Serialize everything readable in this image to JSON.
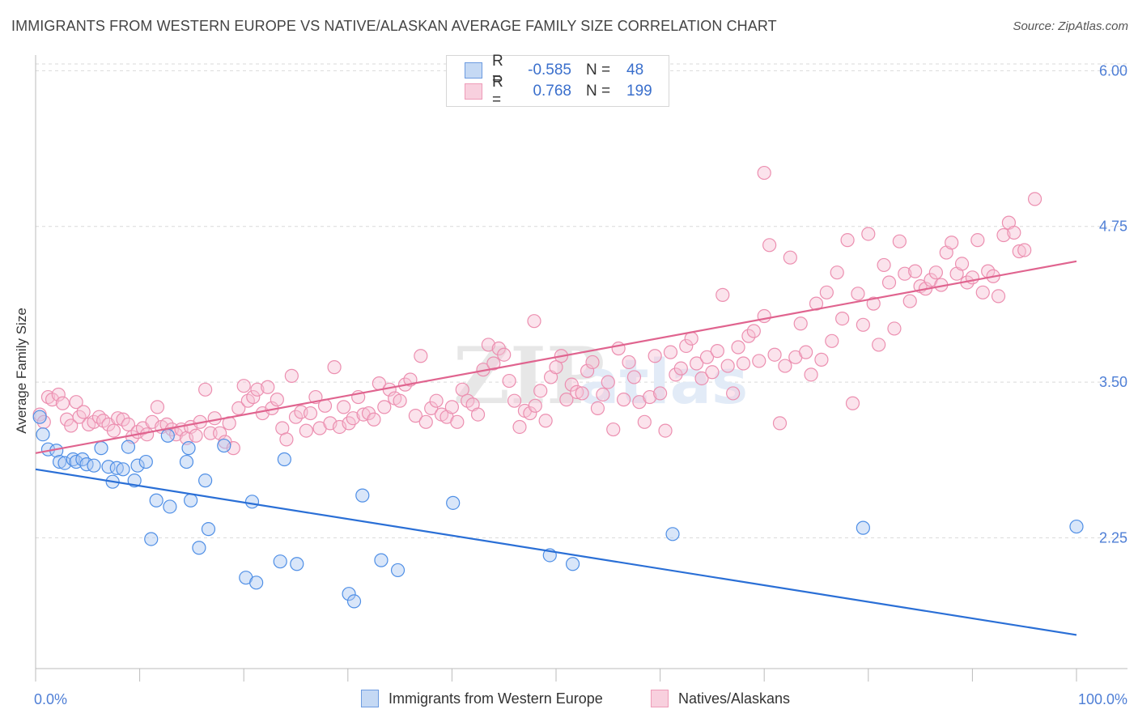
{
  "title": "IMMIGRANTS FROM WESTERN EUROPE VS NATIVE/ALASKAN AVERAGE FAMILY SIZE CORRELATION CHART",
  "source": "Source: ZipAtlas.com",
  "watermark": {
    "zip": "ZIP",
    "atlas": "atlas"
  },
  "colors": {
    "blue": "#4f8fe6",
    "blue_fill": "#aac8f2",
    "blue_line": "#2a6fd6",
    "pink": "#ec8fb0",
    "pink_fill": "#f6c2d4",
    "pink_line": "#e0648f",
    "tick_text": "#4f7fd6",
    "grid": "#d9d9d9"
  },
  "legend": {
    "rows": [
      {
        "r_label": "R =",
        "r_value": "-0.585",
        "n_label": "N =",
        "n_value": "48"
      },
      {
        "r_label": "R =",
        "r_value": "0.768",
        "n_label": "N =",
        "n_value": "199"
      }
    ]
  },
  "bottom_legend": [
    "Immigrants from Western Europe",
    "Natives/Alaskans"
  ],
  "chart_data": {
    "type": "scatter",
    "xlabel": "",
    "ylabel": "Average Family Size",
    "xlim": [
      0,
      100
    ],
    "ylim": [
      1.2,
      6.1
    ],
    "x_tick_labels": [
      "0.0%",
      "100.0%"
    ],
    "y_ticks": [
      2.25,
      3.5,
      4.75,
      6.0
    ],
    "y_tick_labels": [
      "2.25",
      "3.50",
      "4.75",
      "6.00"
    ],
    "grid": true,
    "series": [
      {
        "name": "Immigrants from Western Europe",
        "color": "blue",
        "trend": [
          [
            0,
            2.8
          ],
          [
            100,
            1.47
          ]
        ],
        "points": [
          [
            0.4,
            3.22
          ],
          [
            0.7,
            3.08
          ],
          [
            1.2,
            2.96
          ],
          [
            2.0,
            2.95
          ],
          [
            2.3,
            2.86
          ],
          [
            2.8,
            2.85
          ],
          [
            3.6,
            2.88
          ],
          [
            3.9,
            2.86
          ],
          [
            4.5,
            2.88
          ],
          [
            4.9,
            2.84
          ],
          [
            5.6,
            2.83
          ],
          [
            6.3,
            2.97
          ],
          [
            7.0,
            2.82
          ],
          [
            7.4,
            2.7
          ],
          [
            7.8,
            2.81
          ],
          [
            8.4,
            2.8
          ],
          [
            8.9,
            2.98
          ],
          [
            9.5,
            2.71
          ],
          [
            9.8,
            2.83
          ],
          [
            10.6,
            2.86
          ],
          [
            11.1,
            2.24
          ],
          [
            11.6,
            2.55
          ],
          [
            12.7,
            3.07
          ],
          [
            12.9,
            2.5
          ],
          [
            14.5,
            2.86
          ],
          [
            14.7,
            2.97
          ],
          [
            14.9,
            2.55
          ],
          [
            15.7,
            2.17
          ],
          [
            16.3,
            2.71
          ],
          [
            16.6,
            2.32
          ],
          [
            18.1,
            2.99
          ],
          [
            20.2,
            1.93
          ],
          [
            20.8,
            2.54
          ],
          [
            21.2,
            1.89
          ],
          [
            23.5,
            2.06
          ],
          [
            23.9,
            2.88
          ],
          [
            25.1,
            2.04
          ],
          [
            30.1,
            1.8
          ],
          [
            30.6,
            1.74
          ],
          [
            31.4,
            2.59
          ],
          [
            33.2,
            2.07
          ],
          [
            34.8,
            1.99
          ],
          [
            40.1,
            2.53
          ],
          [
            49.4,
            2.11
          ],
          [
            61.2,
            2.28
          ],
          [
            79.5,
            2.33
          ],
          [
            100,
            2.34
          ],
          [
            51.6,
            2.04
          ]
        ]
      },
      {
        "name": "Natives/Alaskans",
        "color": "pink",
        "trend": [
          [
            0,
            2.93
          ],
          [
            100,
            4.47
          ]
        ],
        "points": [
          [
            0.4,
            3.24
          ],
          [
            0.8,
            3.18
          ],
          [
            1.2,
            3.38
          ],
          [
            1.6,
            3.36
          ],
          [
            2.2,
            3.4
          ],
          [
            2.6,
            3.33
          ],
          [
            3.0,
            3.2
          ],
          [
            3.4,
            3.15
          ],
          [
            3.9,
            3.34
          ],
          [
            4.2,
            3.22
          ],
          [
            4.6,
            3.26
          ],
          [
            5.1,
            3.16
          ],
          [
            5.6,
            3.18
          ],
          [
            6.1,
            3.22
          ],
          [
            6.5,
            3.19
          ],
          [
            7.0,
            3.16
          ],
          [
            7.5,
            3.11
          ],
          [
            7.9,
            3.21
          ],
          [
            8.4,
            3.2
          ],
          [
            8.9,
            3.16
          ],
          [
            9.3,
            3.06
          ],
          [
            9.8,
            3.1
          ],
          [
            10.3,
            3.13
          ],
          [
            10.7,
            3.08
          ],
          [
            11.2,
            3.18
          ],
          [
            11.7,
            3.3
          ],
          [
            12.1,
            3.14
          ],
          [
            12.6,
            3.16
          ],
          [
            13.1,
            3.12
          ],
          [
            13.5,
            3.08
          ],
          [
            14.0,
            3.12
          ],
          [
            14.5,
            3.05
          ],
          [
            14.9,
            3.14
          ],
          [
            15.4,
            3.07
          ],
          [
            15.8,
            3.18
          ],
          [
            16.3,
            3.44
          ],
          [
            16.8,
            3.09
          ],
          [
            17.2,
            3.21
          ],
          [
            17.7,
            3.09
          ],
          [
            18.2,
            3.02
          ],
          [
            18.6,
            3.17
          ],
          [
            19.0,
            2.97
          ],
          [
            19.5,
            3.29
          ],
          [
            20.0,
            3.47
          ],
          [
            20.4,
            3.35
          ],
          [
            20.9,
            3.38
          ],
          [
            21.3,
            3.44
          ],
          [
            21.8,
            3.25
          ],
          [
            22.3,
            3.46
          ],
          [
            22.7,
            3.29
          ],
          [
            23.2,
            3.36
          ],
          [
            23.7,
            3.13
          ],
          [
            24.1,
            3.04
          ],
          [
            24.6,
            3.55
          ],
          [
            25.0,
            3.22
          ],
          [
            25.5,
            3.26
          ],
          [
            26.0,
            3.11
          ],
          [
            26.4,
            3.25
          ],
          [
            26.9,
            3.38
          ],
          [
            27.3,
            3.13
          ],
          [
            27.8,
            3.31
          ],
          [
            28.3,
            3.17
          ],
          [
            28.7,
            3.62
          ],
          [
            29.2,
            3.14
          ],
          [
            29.6,
            3.3
          ],
          [
            30.1,
            3.17
          ],
          [
            30.5,
            3.21
          ],
          [
            31.0,
            3.38
          ],
          [
            31.5,
            3.24
          ],
          [
            32.0,
            3.25
          ],
          [
            32.5,
            3.2
          ],
          [
            33.0,
            3.49
          ],
          [
            33.5,
            3.3
          ],
          [
            34.0,
            3.44
          ],
          [
            34.5,
            3.37
          ],
          [
            35.0,
            3.35
          ],
          [
            35.5,
            3.48
          ],
          [
            36.0,
            3.52
          ],
          [
            36.5,
            3.23
          ],
          [
            37.0,
            3.71
          ],
          [
            37.5,
            3.18
          ],
          [
            38.0,
            3.29
          ],
          [
            38.5,
            3.35
          ],
          [
            39.0,
            3.24
          ],
          [
            39.5,
            3.22
          ],
          [
            40.0,
            3.3
          ],
          [
            40.5,
            3.18
          ],
          [
            41.0,
            3.44
          ],
          [
            41.5,
            3.35
          ],
          [
            42.0,
            3.32
          ],
          [
            42.5,
            3.24
          ],
          [
            43.0,
            3.6
          ],
          [
            43.5,
            3.8
          ],
          [
            44.0,
            3.65
          ],
          [
            44.5,
            3.77
          ],
          [
            45.0,
            3.72
          ],
          [
            45.5,
            3.51
          ],
          [
            46.0,
            3.35
          ],
          [
            46.5,
            3.14
          ],
          [
            47.0,
            3.27
          ],
          [
            47.5,
            3.25
          ],
          [
            48.0,
            3.31
          ],
          [
            48.5,
            3.43
          ],
          [
            49.0,
            3.19
          ],
          [
            49.5,
            3.54
          ],
          [
            50.0,
            3.62
          ],
          [
            50.5,
            3.71
          ],
          [
            51.0,
            3.36
          ],
          [
            51.5,
            3.48
          ],
          [
            52.0,
            3.42
          ],
          [
            52.5,
            3.41
          ],
          [
            53.0,
            3.59
          ],
          [
            53.5,
            3.66
          ],
          [
            54.0,
            3.29
          ],
          [
            54.5,
            3.4
          ],
          [
            55.0,
            3.5
          ],
          [
            55.5,
            3.12
          ],
          [
            56.0,
            3.77
          ],
          [
            56.5,
            3.36
          ],
          [
            57.0,
            3.66
          ],
          [
            57.5,
            3.54
          ],
          [
            58.0,
            3.34
          ],
          [
            58.5,
            3.18
          ],
          [
            59.0,
            3.38
          ],
          [
            59.5,
            3.71
          ],
          [
            60.0,
            3.41
          ],
          [
            60.5,
            3.11
          ],
          [
            61.0,
            3.74
          ],
          [
            61.5,
            3.56
          ],
          [
            62.0,
            3.61
          ],
          [
            62.5,
            3.79
          ],
          [
            63.0,
            3.85
          ],
          [
            63.5,
            3.65
          ],
          [
            64.0,
            3.53
          ],
          [
            64.5,
            3.7
          ],
          [
            65.0,
            3.58
          ],
          [
            65.5,
            3.75
          ],
          [
            66.0,
            4.2
          ],
          [
            66.5,
            3.63
          ],
          [
            67.0,
            3.41
          ],
          [
            67.5,
            3.78
          ],
          [
            68.0,
            3.65
          ],
          [
            68.5,
            3.87
          ],
          [
            69.0,
            3.91
          ],
          [
            69.5,
            3.67
          ],
          [
            70.0,
            4.03
          ],
          [
            70.5,
            4.6
          ],
          [
            71.0,
            3.72
          ],
          [
            71.5,
            3.17
          ],
          [
            72.0,
            3.63
          ],
          [
            72.5,
            4.5
          ],
          [
            73.0,
            3.7
          ],
          [
            73.5,
            3.97
          ],
          [
            74.0,
            3.74
          ],
          [
            74.5,
            3.56
          ],
          [
            75.0,
            4.13
          ],
          [
            75.5,
            3.68
          ],
          [
            76.0,
            4.22
          ],
          [
            76.5,
            3.83
          ],
          [
            77.0,
            4.38
          ],
          [
            77.5,
            4.01
          ],
          [
            78.0,
            4.64
          ],
          [
            78.5,
            3.33
          ],
          [
            79.0,
            4.21
          ],
          [
            79.5,
            3.96
          ],
          [
            80.0,
            4.69
          ],
          [
            80.5,
            4.13
          ],
          [
            81.0,
            3.8
          ],
          [
            81.5,
            4.44
          ],
          [
            82.0,
            4.3
          ],
          [
            82.5,
            3.93
          ],
          [
            83.0,
            4.63
          ],
          [
            83.5,
            4.37
          ],
          [
            84.0,
            4.15
          ],
          [
            84.5,
            4.39
          ],
          [
            85.0,
            4.27
          ],
          [
            85.5,
            4.25
          ],
          [
            86.0,
            4.32
          ],
          [
            86.5,
            4.38
          ],
          [
            87.0,
            4.28
          ],
          [
            87.5,
            4.54
          ],
          [
            88.0,
            4.62
          ],
          [
            88.5,
            4.37
          ],
          [
            89.0,
            4.45
          ],
          [
            89.5,
            4.3
          ],
          [
            90.0,
            4.34
          ],
          [
            90.5,
            4.64
          ],
          [
            91.0,
            4.22
          ],
          [
            91.5,
            4.39
          ],
          [
            92.0,
            4.35
          ],
          [
            92.5,
            4.19
          ],
          [
            93.0,
            4.68
          ],
          [
            93.5,
            4.78
          ],
          [
            94.0,
            4.7
          ],
          [
            94.5,
            4.55
          ],
          [
            95.0,
            4.56
          ],
          [
            96.0,
            4.97
          ],
          [
            47.9,
            3.99
          ],
          [
            70.0,
            5.18
          ]
        ]
      }
    ]
  }
}
